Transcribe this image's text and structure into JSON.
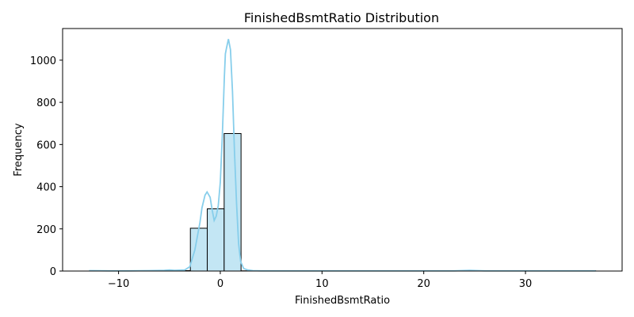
{
  "chart_data": {
    "type": "bar",
    "title": "FinishedBsmtRatio Distribution",
    "xlabel": "FinishedBsmtRatio",
    "ylabel": "Frequency",
    "xlim": [
      -15.5,
      39.5
    ],
    "ylim": [
      0,
      1150
    ],
    "xticks": [
      -10,
      0,
      10,
      20,
      30
    ],
    "yticks": [
      0,
      200,
      400,
      600,
      800,
      1000
    ],
    "grid": false,
    "bar_color": "#c3e6f4",
    "bar_edge_color": "#000000",
    "kde_color": "#87ceeb",
    "bins": [
      {
        "x0": -12.9,
        "x1": -11.24,
        "count": 0
      },
      {
        "x0": -11.24,
        "x1": -9.58,
        "count": 0
      },
      {
        "x0": -9.58,
        "x1": -7.92,
        "count": 1
      },
      {
        "x0": -7.92,
        "x1": -6.26,
        "count": 1
      },
      {
        "x0": -6.26,
        "x1": -4.6,
        "count": 2
      },
      {
        "x0": -4.6,
        "x1": -2.94,
        "count": 2
      },
      {
        "x0": -2.94,
        "x1": -1.28,
        "count": 203
      },
      {
        "x0": -1.28,
        "x1": 0.38,
        "count": 295
      },
      {
        "x0": 0.38,
        "x1": 2.04,
        "count": 652
      },
      {
        "x0": 2.04,
        "x1": 3.7,
        "count": 1
      },
      {
        "x0": 3.7,
        "x1": 5.36,
        "count": 0
      },
      {
        "x0": 5.36,
        "x1": 7.02,
        "count": 0
      },
      {
        "x0": 7.02,
        "x1": 8.68,
        "count": 0
      },
      {
        "x0": 8.68,
        "x1": 10.34,
        "count": 0
      },
      {
        "x0": 10.34,
        "x1": 12.0,
        "count": 0
      },
      {
        "x0": 12.0,
        "x1": 13.66,
        "count": 0
      },
      {
        "x0": 13.66,
        "x1": 15.32,
        "count": 0
      },
      {
        "x0": 15.32,
        "x1": 16.98,
        "count": 0
      },
      {
        "x0": 16.98,
        "x1": 18.64,
        "count": 0
      },
      {
        "x0": 18.64,
        "x1": 20.3,
        "count": 1
      },
      {
        "x0": 20.3,
        "x1": 21.96,
        "count": 0
      },
      {
        "x0": 21.96,
        "x1": 23.62,
        "count": 0
      },
      {
        "x0": 23.62,
        "x1": 25.28,
        "count": 1
      },
      {
        "x0": 25.28,
        "x1": 26.94,
        "count": 0
      },
      {
        "x0": 26.94,
        "x1": 28.6,
        "count": 0
      },
      {
        "x0": 28.6,
        "x1": 30.26,
        "count": 0
      },
      {
        "x0": 30.26,
        "x1": 31.92,
        "count": 0
      },
      {
        "x0": 31.92,
        "x1": 33.58,
        "count": 0
      },
      {
        "x0": 33.58,
        "x1": 35.24,
        "count": 0
      },
      {
        "x0": 35.24,
        "x1": 36.9,
        "count": 1
      }
    ],
    "kde": {
      "x": [
        -12.9,
        -11,
        -9,
        -7,
        -5.5,
        -5,
        -4.5,
        -3.5,
        -3,
        -2.5,
        -2,
        -1.8,
        -1.5,
        -1.3,
        -1.0,
        -0.8,
        -0.6,
        -0.4,
        -0.2,
        0.0,
        0.2,
        0.4,
        0.5,
        0.6,
        0.8,
        1.0,
        1.2,
        1.4,
        1.6,
        1.8,
        2.0,
        2.3,
        2.7,
        3.2,
        4,
        6,
        10,
        15,
        20,
        23,
        24.5,
        26,
        30,
        34,
        36.9
      ],
      "y": [
        2,
        1,
        1,
        2,
        3,
        5,
        3,
        5,
        20,
        100,
        230,
        300,
        360,
        375,
        350,
        290,
        240,
        260,
        310,
        420,
        640,
        920,
        1030,
        1055,
        1100,
        1050,
        850,
        560,
        320,
        130,
        45,
        12,
        5,
        2,
        1,
        1,
        1,
        1,
        1,
        1,
        3,
        1,
        1,
        1,
        1
      ]
    }
  }
}
